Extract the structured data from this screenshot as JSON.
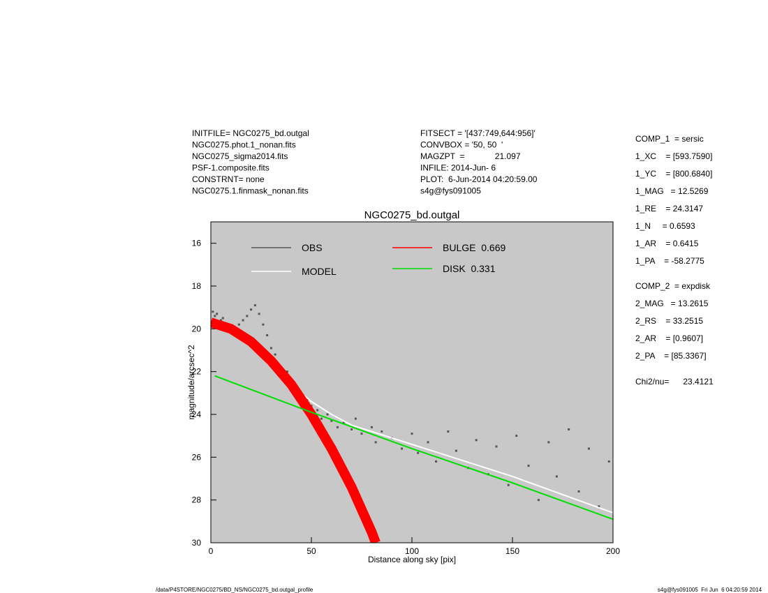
{
  "chart_data": {
    "type": "scatter",
    "title": "NGC0275_bd.outgal",
    "xlabel": "Distance along sky [pix]",
    "ylabel": "magnitude/arcsec^2",
    "xlim": [
      0,
      200
    ],
    "ylim": [
      30,
      15
    ],
    "xticks": [
      0,
      50,
      100,
      150,
      200
    ],
    "yticks": [
      16,
      18,
      20,
      22,
      24,
      26,
      28,
      30
    ],
    "background": "#c8c8c8",
    "series": [
      {
        "name": "OBS",
        "type": "scatter",
        "color": "#555555",
        "x": [
          1,
          2,
          3,
          5,
          6,
          8,
          10,
          12,
          14,
          16,
          18,
          20,
          22,
          24,
          26,
          28,
          30,
          32,
          35,
          38,
          40,
          43,
          46,
          48,
          50,
          53,
          55,
          58,
          60,
          63,
          66,
          70,
          72,
          75,
          80,
          82,
          85,
          90,
          95,
          100,
          103,
          108,
          112,
          118,
          122,
          128,
          132,
          138,
          142,
          148,
          152,
          158,
          163,
          168,
          172,
          178,
          183,
          188,
          193,
          198
        ],
        "values": [
          19.2,
          19.4,
          19.3,
          19.6,
          19.5,
          19.8,
          19.9,
          20.1,
          19.8,
          19.6,
          19.4,
          19.1,
          18.9,
          19.3,
          19.8,
          20.3,
          20.9,
          21.2,
          21.8,
          22.0,
          22.5,
          22.8,
          23.1,
          23.3,
          23.6,
          23.8,
          24.2,
          24.0,
          24.3,
          24.6,
          24.4,
          24.7,
          24.2,
          24.9,
          24.6,
          25.3,
          24.8,
          25.1,
          25.6,
          24.9,
          25.8,
          25.3,
          26.2,
          24.8,
          25.7,
          26.5,
          25.2,
          26.8,
          25.5,
          27.3,
          25.0,
          26.4,
          28.0,
          25.3,
          26.9,
          24.7,
          27.6,
          25.6,
          28.3,
          26.2
        ]
      },
      {
        "name": "MODEL",
        "type": "line",
        "color": "#ffffff",
        "x": [
          0,
          10,
          20,
          30,
          40,
          50,
          60,
          70,
          80,
          100,
          120,
          150,
          200
        ],
        "values": [
          19.7,
          20.1,
          20.8,
          21.7,
          22.6,
          23.4,
          24.0,
          24.5,
          24.8,
          25.4,
          26.0,
          26.9,
          28.6
        ]
      },
      {
        "name": "BULGE  0.669",
        "type": "band",
        "color": "#ff0000",
        "x": [
          0,
          10,
          20,
          30,
          40,
          50,
          60,
          70,
          80,
          82
        ],
        "values": [
          19.7,
          20.0,
          20.6,
          21.5,
          22.6,
          24.0,
          25.6,
          27.4,
          29.5,
          30
        ]
      },
      {
        "name": "DISK  0.331",
        "type": "line",
        "color": "#00dd00",
        "x": [
          2,
          50,
          100,
          150,
          200
        ],
        "values": [
          22.2,
          23.9,
          25.6,
          27.2,
          28.9
        ]
      }
    ]
  },
  "header_left": [
    "INITFILE= NGC0275_bd.outgal",
    "NGC0275.phot.1_nonan.fits",
    "NGC0275_sigma2014.fits",
    "PSF-1.composite.fits",
    "CONSTRNT= none",
    "NGC0275.1.finmask_nonan.fits"
  ],
  "header_middle": [
    "FITSECT = '[437:749,644:956]'",
    "CONVBOX = '50, 50  '",
    "MAGZPT  =             21.097",
    "INFILE: 2014-Jun- 6",
    "PLOT:  6-Jun-2014 04:20:59.00",
    "s4g@fys091005"
  ],
  "params": [
    "COMP_1  = sersic",
    "1_XC    = [593.7590]",
    "1_YC    = [800.6840]",
    "1_MAG   = 12.5269",
    "1_RE    = 24.3147",
    "1_N     = 0.6593",
    "1_AR    = 0.6415",
    "1_PA    = -58.2775"
  ],
  "params2": [
    "COMP_2  = expdisk",
    "2_MAG   = 13.2615",
    "2_RS    = 33.2515",
    "2_AR    = [0.9607]",
    "2_PA    = [85.3367]"
  ],
  "chi": "Chi2/nu=      23.4121",
  "footer_left": "/data/P4STORE/NGC0275/BD_NS/NGC0275_bd.outgal_profile",
  "footer_right": "s4g@fys091005  Fri Jun  6 04:20:59 2014"
}
